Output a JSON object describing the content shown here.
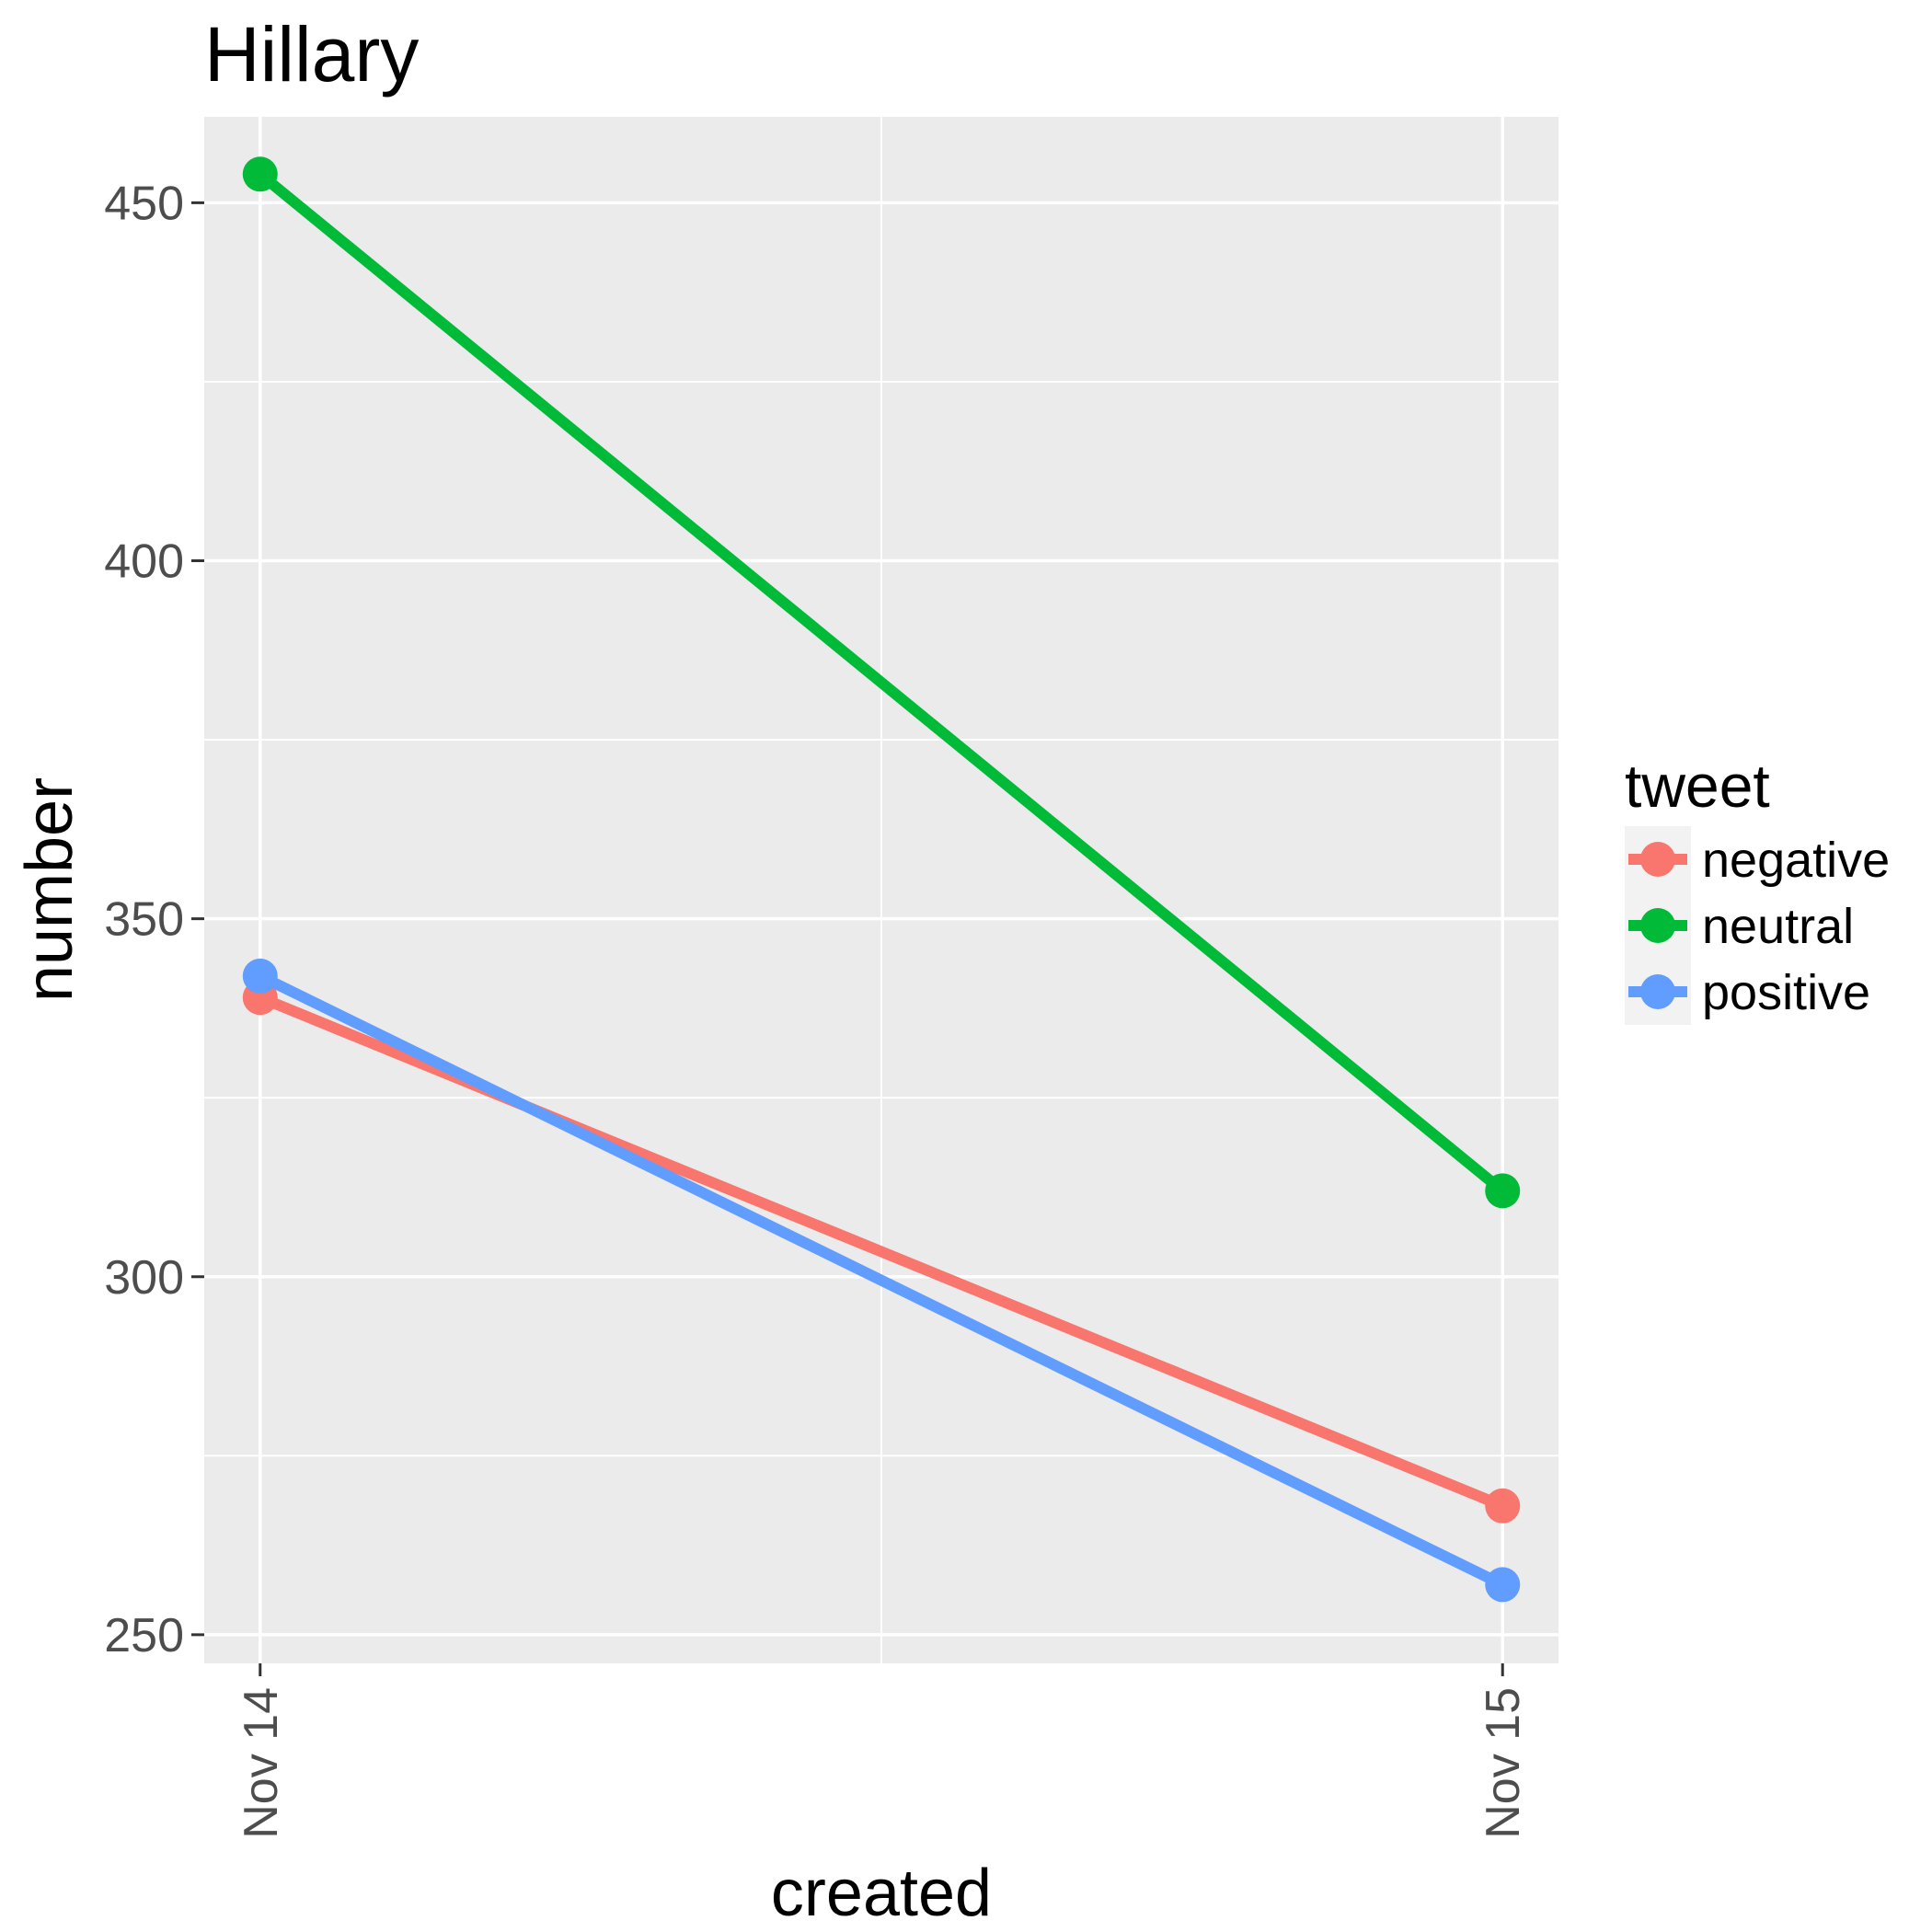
{
  "chart_data": {
    "type": "line",
    "title": "Hillary",
    "xlabel": "created",
    "ylabel": "number",
    "x": [
      "Nov 14",
      "Nov 15"
    ],
    "ylim": [
      246,
      462
    ],
    "yticks": [
      250,
      300,
      350,
      400,
      450
    ],
    "grid": true,
    "legend": {
      "title": "tweet",
      "placement": "right"
    },
    "series": [
      {
        "name": "negative",
        "color": "#F8766D",
        "values": [
          339,
          268
        ]
      },
      {
        "name": "neutral",
        "color": "#00BA38",
        "values": [
          454,
          312
        ]
      },
      {
        "name": "positive",
        "color": "#619CFF",
        "values": [
          342,
          257
        ]
      }
    ]
  }
}
